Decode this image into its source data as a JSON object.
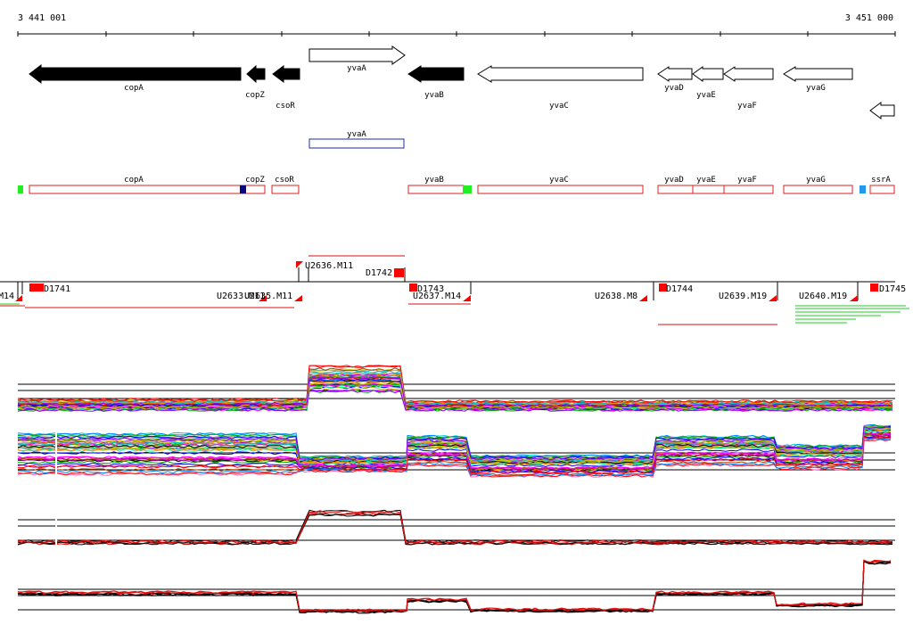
{
  "coords": {
    "start": "3 441 001",
    "end": "3 451 000"
  },
  "genes": [
    {
      "id": "copA",
      "label": "copA",
      "dir": "left",
      "fill": "black"
    },
    {
      "id": "copZ",
      "label": "copZ",
      "dir": "left",
      "fill": "black"
    },
    {
      "id": "csoR",
      "label": "csoR",
      "dir": "left",
      "fill": "black"
    },
    {
      "id": "yvaA",
      "label": "yvaA",
      "dir": "right",
      "fill": "white"
    },
    {
      "id": "yvaB",
      "label": "yvaB",
      "dir": "left",
      "fill": "black"
    },
    {
      "id": "yvaC",
      "label": "yvaC",
      "dir": "left",
      "fill": "white"
    },
    {
      "id": "yvaD",
      "label": "yvaD",
      "dir": "left",
      "fill": "white"
    },
    {
      "id": "yvaE",
      "label": "yvaE",
      "dir": "left",
      "fill": "white"
    },
    {
      "id": "yvaF",
      "label": "yvaF",
      "dir": "left",
      "fill": "white"
    },
    {
      "id": "yvaG",
      "label": "yvaG",
      "dir": "left",
      "fill": "white"
    },
    {
      "id": "ssrA-arrow",
      "label": "",
      "dir": "left",
      "fill": "white"
    }
  ],
  "blue_box": {
    "label": "yvaA"
  },
  "annot_boxes": [
    {
      "label": "copA"
    },
    {
      "label": "copZ"
    },
    {
      "label": "csoR"
    },
    {
      "label": "yvaB"
    },
    {
      "label": "yvaC"
    },
    {
      "label": "yvaD"
    },
    {
      "label": "yvaE"
    },
    {
      "label": "yvaF"
    },
    {
      "label": "yvaG"
    },
    {
      "label": "ssrA"
    }
  ],
  "probe_labels": [
    {
      "text": "M14"
    },
    {
      "text": "D1741"
    },
    {
      "text": "U2633.M11"
    },
    {
      "text": "U2635.M11"
    },
    {
      "text": "U2636.M11"
    },
    {
      "text": "D1742"
    },
    {
      "text": "D1743"
    },
    {
      "text": "U2637.M14"
    },
    {
      "text": "U2638.M8"
    },
    {
      "text": "D1744"
    },
    {
      "text": "U2639.M19"
    },
    {
      "text": "U2640.M19"
    },
    {
      "text": "D1745"
    }
  ],
  "colors": {
    "gene_black": "#000000",
    "annot_red": "#dd2222",
    "blue_box": "#1a2ea8",
    "marker_green": "#22ee22",
    "marker_navy": "#0a0a80",
    "marker_blue": "#2299ee",
    "probe_red": "#ff0000",
    "line_red": "#dd1111"
  }
}
